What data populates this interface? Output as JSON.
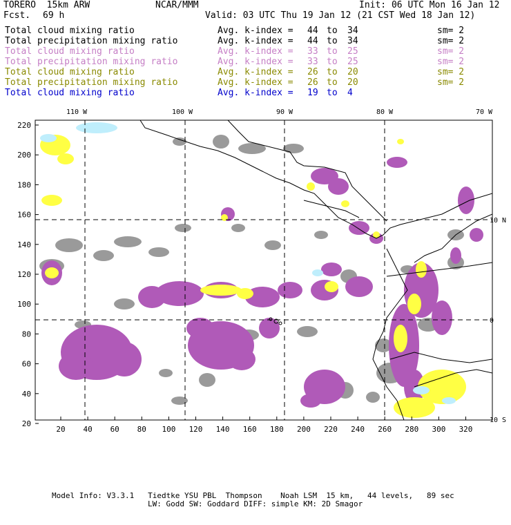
{
  "header": {
    "model": "TORERO  15km ARW",
    "center": "NCAR/MMM",
    "init": "Init: 06 UTC Mon 16 Jan 12",
    "fcst_label": "Fcst.",
    "fcst_value": "69 h",
    "valid": "Valid: 03 UTC Thu 19 Jan 12 (21 CST Wed 18 Jan 12)"
  },
  "legend": [
    {
      "name": "Total cloud mixing ratio",
      "kindex": "Avg. k-index =",
      "from": "44",
      "to_word": "to",
      "to": "34",
      "sm": "sm= 2",
      "color": "#000000"
    },
    {
      "name": "Total precipitation mixing ratio",
      "kindex": "Avg. k-index =",
      "from": "44",
      "to_word": "to",
      "to": "34",
      "sm": "sm= 2",
      "color": "#000000"
    },
    {
      "name": "Total cloud mixing ratio",
      "kindex": "Avg. k-index =",
      "from": "33",
      "to_word": "to",
      "to": "25",
      "sm": "sm= 2",
      "color": "#c57ec5"
    },
    {
      "name": "Total precipitation mixing ratio",
      "kindex": "Avg. k-index =",
      "from": "33",
      "to_word": "to",
      "to": "25",
      "sm": "sm= 2",
      "color": "#c57ec5"
    },
    {
      "name": "Total cloud mixing ratio",
      "kindex": "Avg. k-index =",
      "from": "26",
      "to_word": "to",
      "to": "20",
      "sm": "sm= 2",
      "color": "#8a8a00"
    },
    {
      "name": "Total precipitation mixing ratio",
      "kindex": "Avg. k-index =",
      "from": "26",
      "to_word": "to",
      "to": "20",
      "sm": "sm= 2",
      "color": "#8a8a00"
    },
    {
      "name": "Total cloud mixing ratio",
      "kindex": "Avg. k-index =",
      "from": "19",
      "to_word": "to",
      "to": "4",
      "sm": "",
      "color": "#0000cc"
    }
  ],
  "map": {
    "top_ticks": [
      "110 W",
      "100 W",
      "90 W",
      "80 W",
      "70 W"
    ],
    "right_ticks": [
      "10 N",
      "0",
      "10 S"
    ],
    "left_ticks": [
      "220",
      "200",
      "180",
      "160",
      "140",
      "120",
      "100",
      "80",
      "60",
      "40",
      "20"
    ],
    "bottom_ticks": [
      "20",
      "40",
      "60",
      "80",
      "100",
      "120",
      "140",
      "160",
      "180",
      "200",
      "220",
      "240",
      "260",
      "280",
      "300",
      "320"
    ],
    "colors": {
      "gray": "#9a9a9a",
      "purple": "#b05ab8",
      "yellow": "#ffff44",
      "cyan": "#bfeefc",
      "orange": "#e8a040"
    }
  },
  "footer": {
    "line1": "Model Info: V3.3.1   Tiedtke YSU PBL  Thompson    Noah LSM  15 km,   44 levels,   89 sec",
    "line2": "LW: Godd SW: Goddard DIFF: simple KM: 2D Smagor"
  }
}
